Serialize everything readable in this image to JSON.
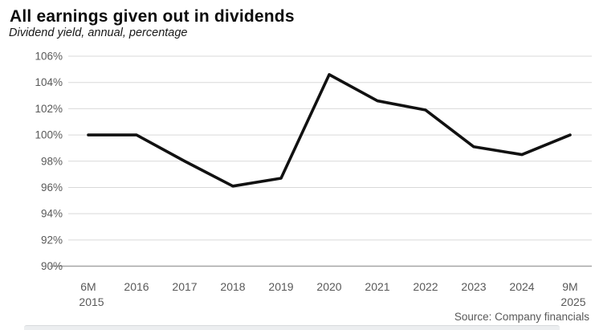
{
  "header": {
    "title": "All earnings given out in dividends",
    "subtitle": "Dividend yield, annual, percentage"
  },
  "footer": {
    "source": "Source: Company financials"
  },
  "colors": {
    "background": "#ffffff",
    "line": "#111111",
    "gridline": "#d9d9d9",
    "axis_line": "#a6a6a6",
    "tick_label": "#595959",
    "title_text": "#0d0d0d"
  },
  "chart_data": {
    "type": "line",
    "title": "All earnings given out in dividends",
    "subtitle": "Dividend yield, annual, percentage",
    "categories": [
      "6M 2015",
      "2016",
      "2017",
      "2018",
      "2019",
      "2020",
      "2021",
      "2022",
      "2023",
      "2024",
      "9M 2025"
    ],
    "series": [
      {
        "name": "Dividend yield, annual, percentage",
        "values": [
          100,
          100,
          98,
          96.1,
          96.7,
          104.6,
          102.6,
          101.9,
          99.1,
          98.5,
          100
        ]
      }
    ],
    "xlabel": "",
    "ylabel": "",
    "ylim": [
      90,
      106
    ],
    "yticks": [
      106,
      104,
      102,
      100,
      98,
      96,
      94,
      92,
      90
    ],
    "ytick_suffix": "%",
    "grid": "horizontal",
    "legend": "none",
    "source": "Source: Company financials"
  }
}
